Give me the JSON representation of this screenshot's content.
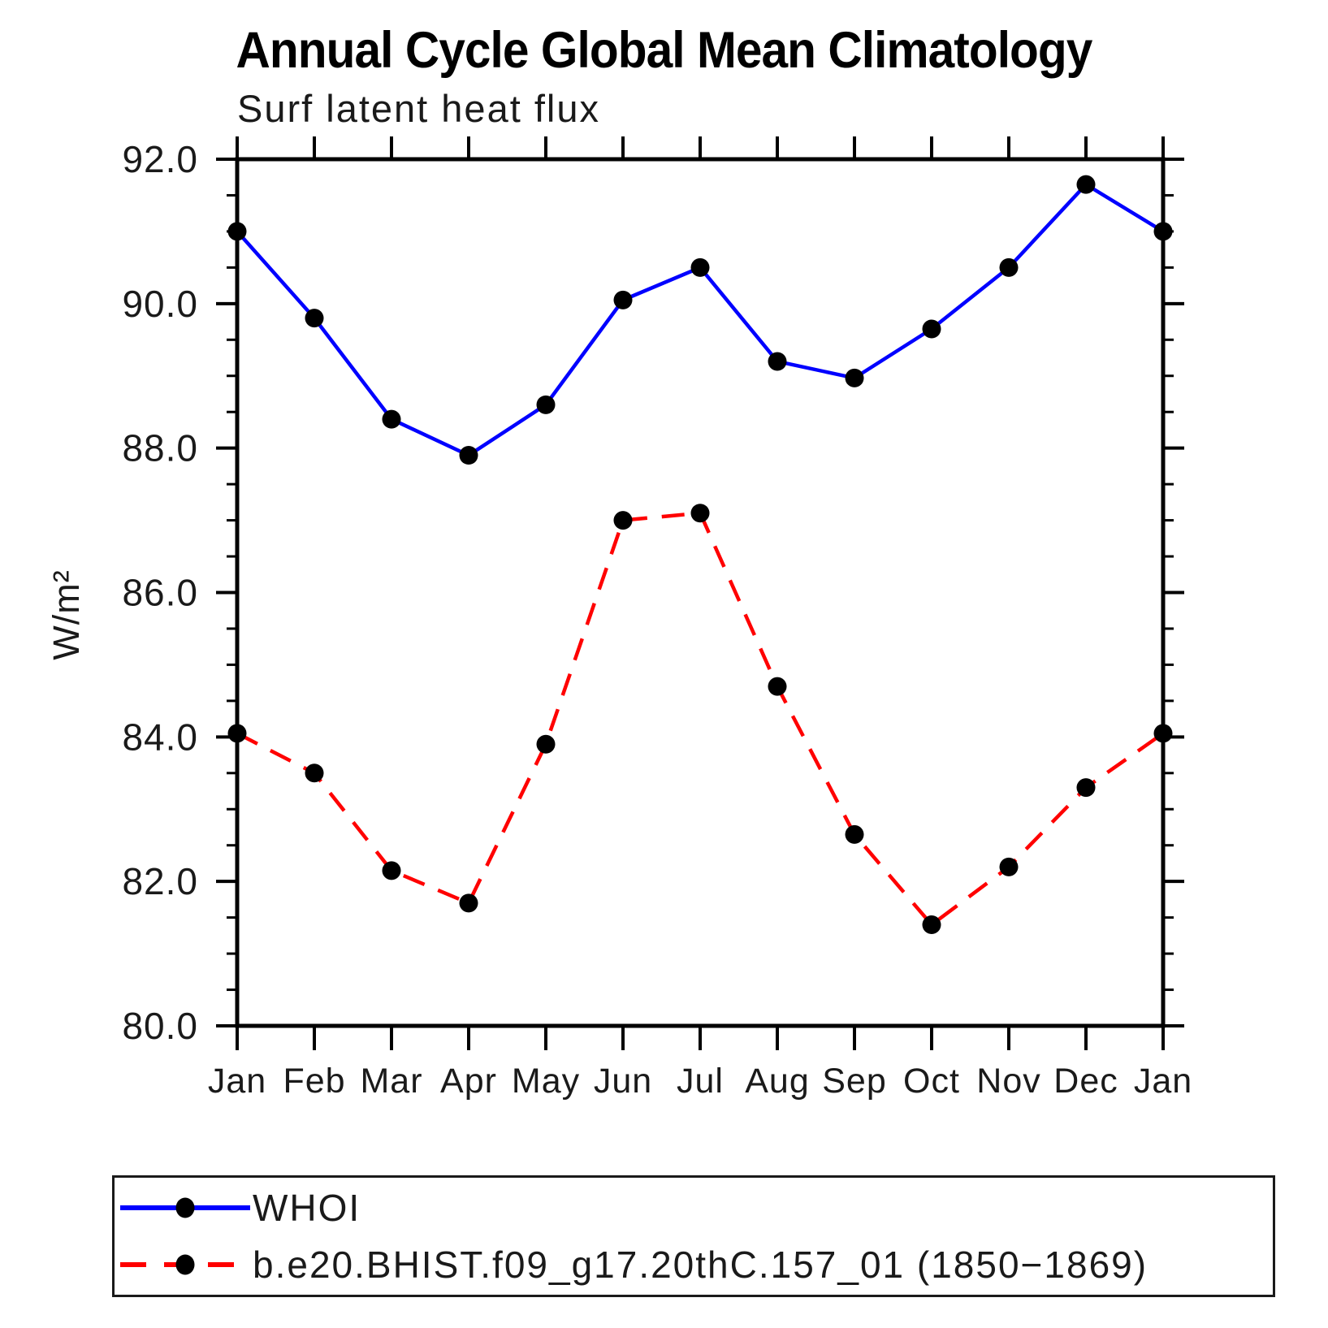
{
  "chart_data": {
    "type": "line",
    "title": "Annual Cycle Global Mean Climatology",
    "subtitle": "Surf latent heat flux",
    "ylabel": "W/m²",
    "xlabel": "",
    "categories": [
      "Jan",
      "Feb",
      "Mar",
      "Apr",
      "May",
      "Jun",
      "Jul",
      "Aug",
      "Sep",
      "Oct",
      "Nov",
      "Dec",
      "Jan"
    ],
    "series": [
      {
        "name": "WHOI",
        "color": "#0000ff",
        "line_style": "solid",
        "marker": "filled-circle",
        "marker_color": "#000000",
        "values": [
          91.0,
          89.8,
          88.4,
          87.9,
          88.6,
          90.05,
          90.5,
          89.2,
          88.97,
          89.65,
          90.5,
          91.65,
          91.0
        ]
      },
      {
        "name": "b.e20.BHIST.f09_g17.20thC.157_01 (1850−1869)",
        "color": "#ff0000",
        "line_style": "dashed",
        "marker": "filled-circle",
        "marker_color": "#000000",
        "values": [
          84.05,
          83.5,
          82.15,
          81.7,
          83.9,
          87.0,
          87.1,
          84.7,
          82.65,
          81.4,
          82.2,
          83.3,
          84.05
        ]
      }
    ],
    "ylim": [
      80.0,
      92.0
    ],
    "yticks": [
      "92.0",
      "90.0",
      "88.0",
      "86.0",
      "84.0",
      "82.0",
      "80.0"
    ],
    "ytick_interval": 2.0,
    "y_minor_interval": 0.5,
    "grid": false,
    "legend_position": "bottom-left-box",
    "frame": "box-with-outward-ticks"
  }
}
